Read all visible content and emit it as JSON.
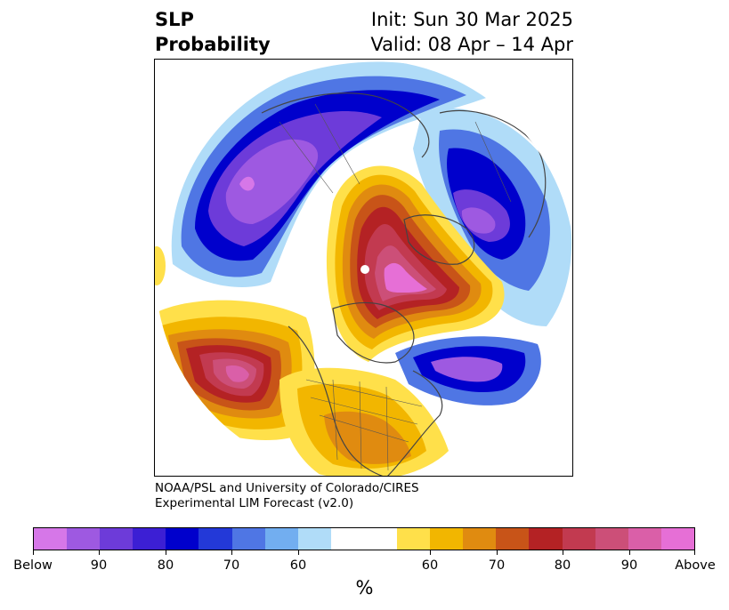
{
  "title": {
    "left_line1": "SLP",
    "left_line2": "Probability",
    "right_line1": "Init: Sun 30 Mar 2025",
    "right_line2": "Valid: 08 Apr – 14 Apr"
  },
  "credit": {
    "line1": "NOAA/PSL and University of Colorado/CIRES",
    "line2": "Experimental LIM Forecast (v2.0)"
  },
  "colorbar": {
    "unit": "%",
    "colors": [
      "#d677e8",
      "#9e59e1",
      "#6d3bd9",
      "#3c1fd4",
      "#0000cc",
      "#2339d8",
      "#4f76e4",
      "#72aef0",
      "#b0dcf8",
      "#ffffff",
      "#ffe04a",
      "#f2b600",
      "#e08b10",
      "#c85418",
      "#b42224",
      "#c23a50",
      "#cc4f78",
      "#da5fa8",
      "#e66fd6"
    ],
    "labels": [
      "Below",
      "90",
      "80",
      "70",
      "60",
      "60",
      "70",
      "80",
      "90",
      "Above"
    ]
  }
}
